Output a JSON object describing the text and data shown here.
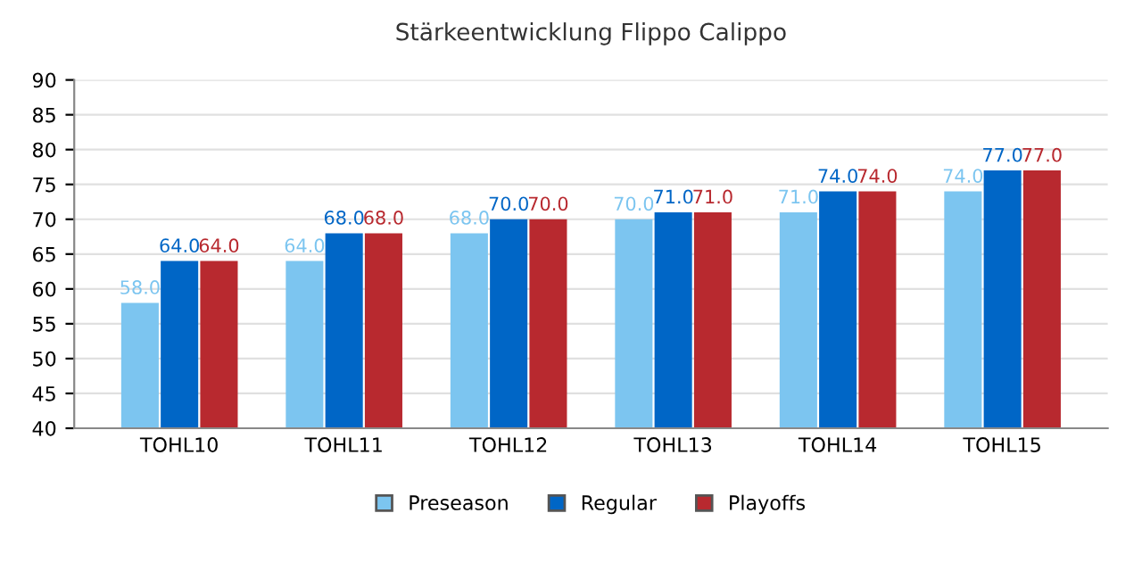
{
  "chart_data": {
    "type": "bar",
    "title": "Stärkeentwicklung Flippo Calippo",
    "categories": [
      "TOHL10",
      "TOHL11",
      "TOHL12",
      "TOHL13",
      "TOHL14",
      "TOHL15"
    ],
    "series": [
      {
        "name": "Preseason",
        "color": "#7cc5f0",
        "values": [
          58,
          64,
          68,
          70,
          71,
          74
        ],
        "value_labels": [
          "58.0",
          "64.0",
          "68.0",
          "70.0",
          "71.0",
          "74.0"
        ]
      },
      {
        "name": "Regular",
        "color": "#0066c6",
        "values": [
          64,
          68,
          70,
          71,
          74,
          77
        ],
        "value_labels": [
          "64.0",
          "68.0",
          "70.0",
          "71.0",
          "74.0",
          "77.0"
        ]
      },
      {
        "name": "Playoffs",
        "color": "#b8292f",
        "values": [
          64,
          68,
          70,
          71,
          74,
          77
        ],
        "value_labels": [
          "64.0",
          "68.0",
          "70.0",
          "71.0",
          "74.0",
          "77.0"
        ]
      }
    ],
    "ylim": [
      40,
      90
    ],
    "yticks": [
      40,
      45,
      50,
      55,
      60,
      65,
      70,
      75,
      80,
      85,
      90
    ],
    "grid": "y",
    "legend": "bottom"
  }
}
